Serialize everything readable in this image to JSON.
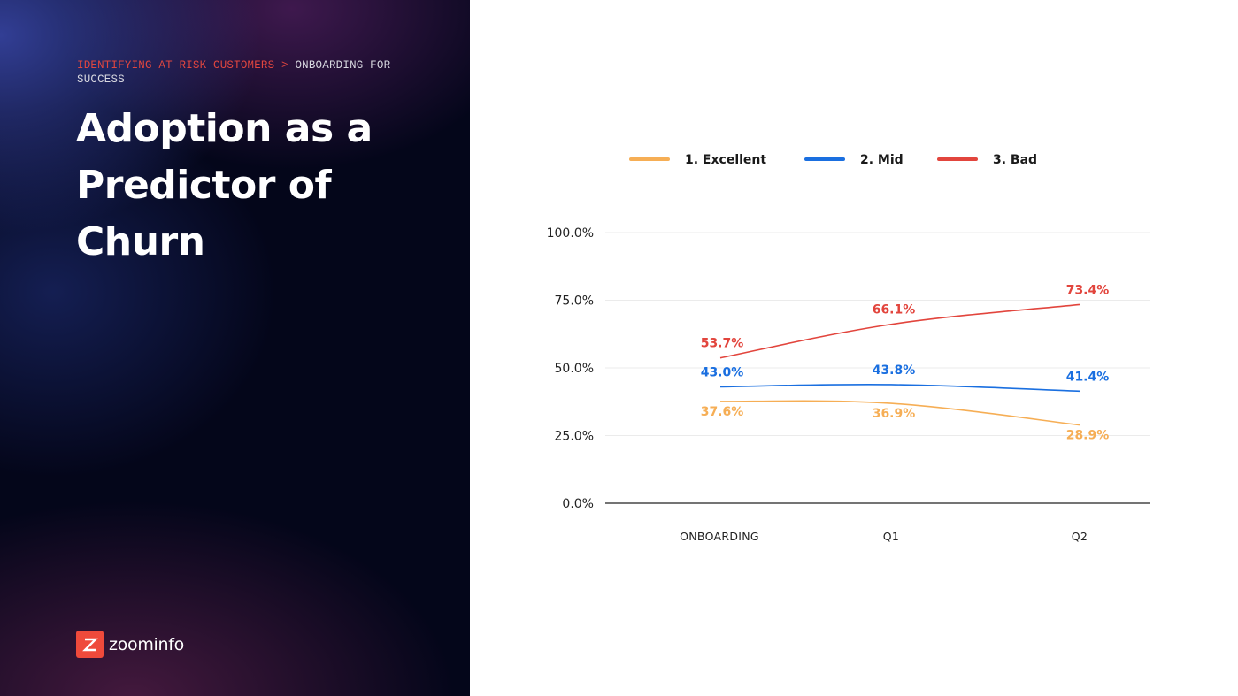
{
  "slide": {
    "breadcrumb_section": "IDENTIFYING AT RISK CUSTOMERS",
    "breadcrumb_separator": ">",
    "breadcrumb_page": "ONBOARDING FOR SUCCESS",
    "title": "Adoption as a Predictor of Churn",
    "logo_text": "zoominfo",
    "logo_mark_letter": "Z",
    "logo_icon": "zoominfo-logo-icon",
    "brand_color": "#ef4a3b"
  },
  "chart_data": {
    "type": "line",
    "categories": [
      "ONBOARDING",
      "Q1",
      "Q2"
    ],
    "series": [
      {
        "name": "1. Excellent",
        "color": "#f6ae55",
        "values": [
          37.6,
          36.9,
          28.9
        ],
        "labels": [
          "37.6%",
          "36.9%",
          "28.9%"
        ]
      },
      {
        "name": "2. Mid",
        "color": "#1a6fe0",
        "values": [
          43.0,
          43.8,
          41.4
        ],
        "labels": [
          "43.0%",
          "43.8%",
          "41.4%"
        ]
      },
      {
        "name": "3. Bad",
        "color": "#e2453d",
        "values": [
          53.7,
          66.1,
          73.4
        ],
        "labels": [
          "53.7%",
          "66.1%",
          "73.4%"
        ]
      }
    ],
    "ylim": [
      0,
      100
    ],
    "yticks": [
      0,
      25,
      50,
      75,
      100
    ],
    "ytick_labels": [
      "0.0%",
      "25.0%",
      "50.0%",
      "75.0%",
      "100.0%"
    ],
    "legend_position": "top",
    "grid": true
  }
}
